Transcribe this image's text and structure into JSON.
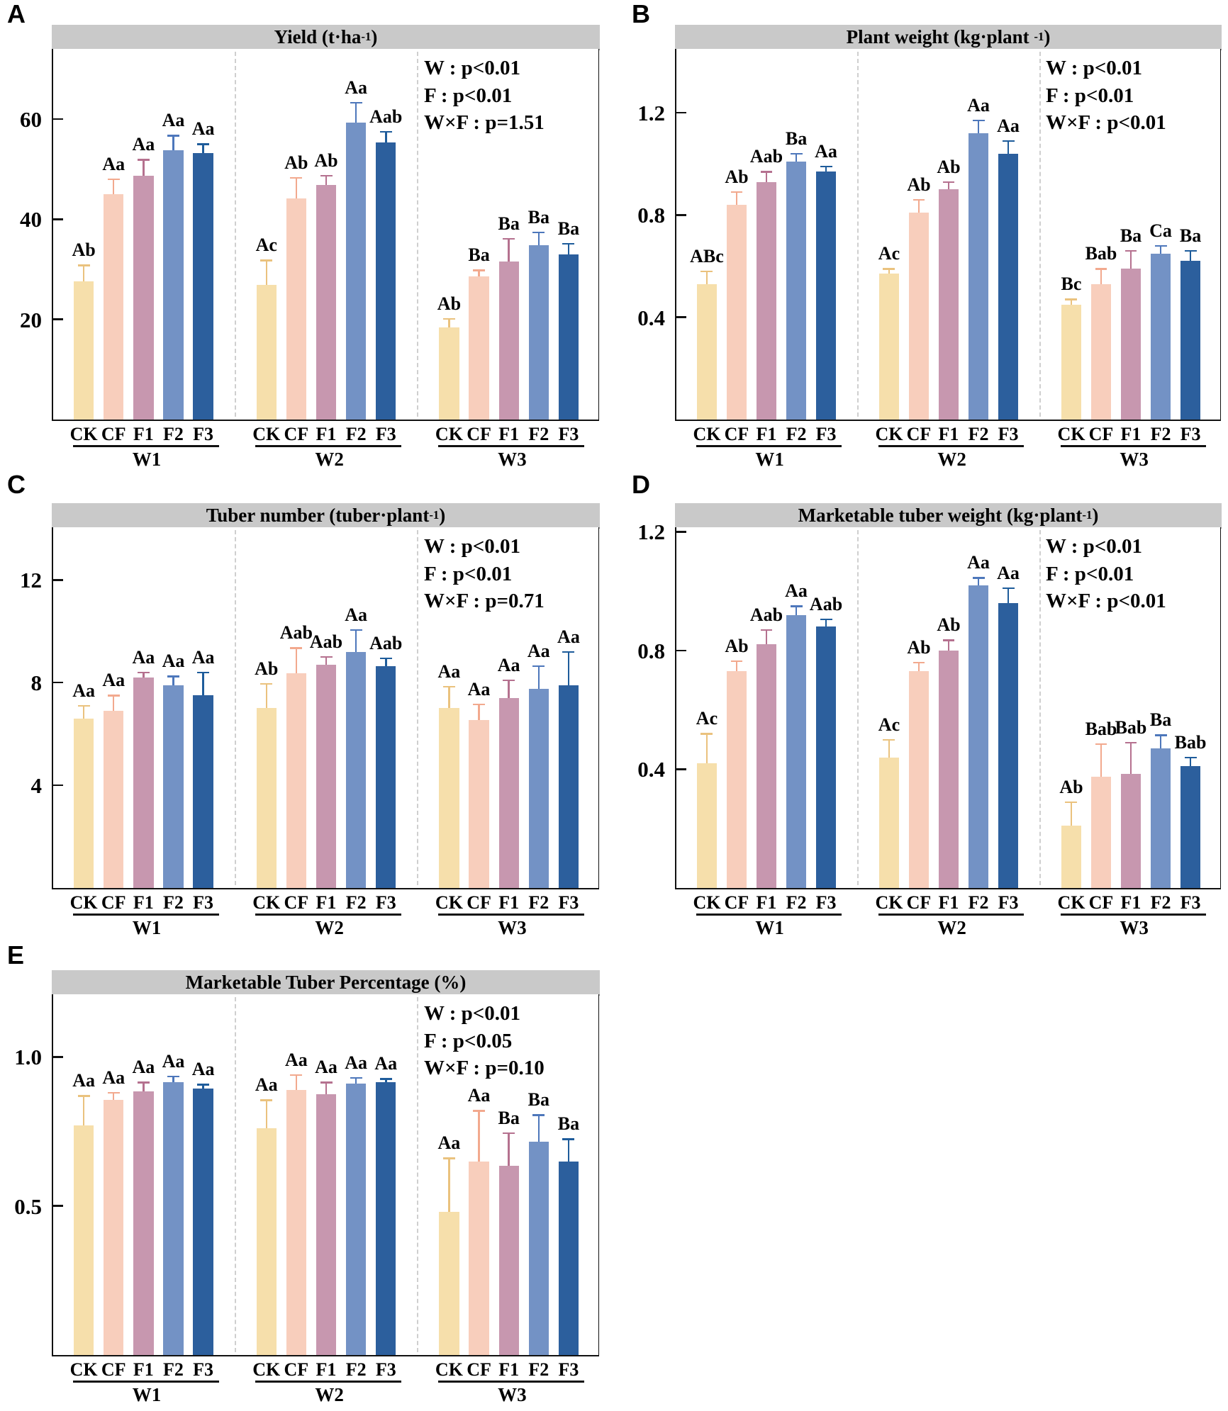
{
  "figure": {
    "panel_letters": [
      "A",
      "B",
      "C",
      "D",
      "E"
    ],
    "categories": [
      "CK",
      "CF",
      "F1",
      "F2",
      "F3"
    ],
    "water_groups": [
      "W1",
      "W2",
      "W3"
    ],
    "colors": {
      "bar_fills": {
        "CK": "#F6DFAB",
        "CF": "#F8CEBC",
        "F1": "#C797AF",
        "F2": "#7392C5",
        "F3": "#2C5F9D"
      },
      "error_bars": {
        "CK": "#EAC27E",
        "CF": "#F2A98E",
        "F1": "#B5718F",
        "F2": "#4D77BB",
        "F3": "#1E5C9B"
      },
      "title_bar_bg": "#C9C9C9",
      "separator": "#CFCFCF",
      "axis": "#111111"
    }
  },
  "chart_data": [
    {
      "panel": "A",
      "type": "bar",
      "title_pre": "Yield (t·ha",
      "title_sup": "-1",
      "title_post": ")",
      "stats": [
        "W : p<0.01",
        "F : p<0.01",
        "W×F : p=1.51"
      ],
      "ytick_labels": [
        "20",
        "40",
        "60"
      ],
      "ytick_values": [
        20,
        40,
        60
      ],
      "ylim": [
        0,
        74
      ],
      "categories": [
        "CK",
        "CF",
        "F1",
        "F2",
        "F3"
      ],
      "group_labels": [
        "W1",
        "W2",
        "W3"
      ],
      "series": [
        {
          "group": "W1",
          "values": [
            27.6,
            45.0,
            48.7,
            53.8,
            53.2
          ],
          "errors": [
            3.2,
            3.0,
            3.2,
            2.9,
            1.8
          ],
          "sig_letters": [
            "Ab",
            "Aa",
            "Aa",
            "Aa",
            "Aa"
          ]
        },
        {
          "group": "W2",
          "values": [
            26.9,
            44.1,
            46.9,
            59.3,
            55.3
          ],
          "errors": [
            4.9,
            4.2,
            1.8,
            4.0,
            2.2
          ],
          "sig_letters": [
            "Ac",
            "Ab",
            "Ab",
            "Aa",
            "Aab"
          ]
        },
        {
          "group": "W3",
          "values": [
            18.4,
            28.6,
            31.6,
            34.8,
            32.9
          ],
          "errors": [
            1.7,
            1.2,
            4.5,
            2.6,
            2.2
          ],
          "sig_letters": [
            "Ab",
            "Ba",
            "Ba",
            "Ba",
            "Ba"
          ]
        }
      ]
    },
    {
      "panel": "B",
      "type": "bar",
      "title_pre": "Plant weight (kg·plant ",
      "title_sup": "-1",
      "title_post": ")",
      "stats": [
        "W : p<0.01",
        "F : p<0.01",
        "W×F : p<0.01"
      ],
      "ytick_labels": [
        "0.4",
        "0.8",
        "1.2"
      ],
      "ytick_values": [
        0.4,
        0.8,
        1.2
      ],
      "ylim": [
        0,
        1.45
      ],
      "categories": [
        "CK",
        "CF",
        "F1",
        "F2",
        "F3"
      ],
      "group_labels": [
        "W1",
        "W2",
        "W3"
      ],
      "series": [
        {
          "group": "W1",
          "values": [
            0.53,
            0.84,
            0.93,
            1.01,
            0.97
          ],
          "errors": [
            0.05,
            0.05,
            0.04,
            0.03,
            0.02
          ],
          "sig_letters": [
            "ABc",
            "Ab",
            "Aab",
            "Ba",
            "Aa"
          ]
        },
        {
          "group": "W2",
          "values": [
            0.57,
            0.81,
            0.9,
            1.12,
            1.04
          ],
          "errors": [
            0.02,
            0.05,
            0.03,
            0.05,
            0.05
          ],
          "sig_letters": [
            "Ac",
            "Ab",
            "Ab",
            "Aa",
            "Aa"
          ]
        },
        {
          "group": "W3",
          "values": [
            0.45,
            0.53,
            0.59,
            0.65,
            0.62
          ],
          "errors": [
            0.02,
            0.06,
            0.07,
            0.03,
            0.04
          ],
          "sig_letters": [
            "Bc",
            "Bab",
            "Ba",
            "Ca",
            "Ba"
          ]
        }
      ]
    },
    {
      "panel": "C",
      "type": "bar",
      "title_pre": "Tuber number (tuber·plant",
      "title_sup": "-1",
      "title_post": ")",
      "stats": [
        "W : p<0.01",
        "F : p<0.01",
        "W×F : p=0.71"
      ],
      "ytick_labels": [
        "4",
        "8",
        "12"
      ],
      "ytick_values": [
        4,
        8,
        12
      ],
      "ylim": [
        0,
        14.05
      ],
      "categories": [
        "CK",
        "CF",
        "F1",
        "F2",
        "F3"
      ],
      "group_labels": [
        "W1",
        "W2",
        "W3"
      ],
      "series": [
        {
          "group": "W1",
          "values": [
            6.6,
            6.9,
            8.2,
            7.9,
            7.5
          ],
          "errors": [
            0.5,
            0.6,
            0.2,
            0.35,
            0.9
          ],
          "sig_letters": [
            "Aa",
            "Aa",
            "Aa",
            "Aa",
            "Aa"
          ]
        },
        {
          "group": "W2",
          "values": [
            7.0,
            8.35,
            8.7,
            9.2,
            8.65
          ],
          "errors": [
            0.95,
            1.0,
            0.3,
            0.85,
            0.3
          ],
          "sig_letters": [
            "Ab",
            "Aab",
            "Aab",
            "Aa",
            "Aab"
          ]
        },
        {
          "group": "W3",
          "values": [
            7.0,
            6.55,
            7.4,
            7.75,
            7.9
          ],
          "errors": [
            0.85,
            0.6,
            0.7,
            0.9,
            1.3
          ],
          "sig_letters": [
            "Aa",
            "Aa",
            "Aa",
            "Aa",
            "Aa"
          ]
        }
      ]
    },
    {
      "panel": "D",
      "type": "bar",
      "title_pre": "Marketable tuber weight (kg·plant",
      "title_sup": "-1",
      "title_post": ")",
      "stats": [
        "W : p<0.01",
        "F : p<0.01",
        "W×F : p<0.01"
      ],
      "ytick_labels": [
        "0.4",
        "0.8",
        "1.2"
      ],
      "ytick_values": [
        0.4,
        0.8,
        1.2
      ],
      "ylim": [
        0,
        1.215
      ],
      "categories": [
        "CK",
        "CF",
        "F1",
        "F2",
        "F3"
      ],
      "group_labels": [
        "W1",
        "W2",
        "W3"
      ],
      "series": [
        {
          "group": "W1",
          "values": [
            0.42,
            0.73,
            0.82,
            0.92,
            0.88
          ],
          "errors": [
            0.1,
            0.035,
            0.05,
            0.03,
            0.025
          ],
          "sig_letters": [
            "Ac",
            "Ab",
            "Aab",
            "Aa",
            "Aab"
          ]
        },
        {
          "group": "W2",
          "values": [
            0.44,
            0.73,
            0.8,
            1.02,
            0.96
          ],
          "errors": [
            0.06,
            0.03,
            0.035,
            0.025,
            0.05
          ],
          "sig_letters": [
            "Ac",
            "Ab",
            "Ab",
            "Aa",
            "Aa"
          ]
        },
        {
          "group": "W3",
          "values": [
            0.21,
            0.375,
            0.385,
            0.47,
            0.41
          ],
          "errors": [
            0.08,
            0.11,
            0.105,
            0.045,
            0.03
          ],
          "sig_letters": [
            "Ab",
            "Bab",
            "Bab",
            "Ba",
            "Bab"
          ]
        }
      ]
    },
    {
      "panel": "E",
      "type": "bar",
      "title_pre": "Marketable Tuber Percentage (%)",
      "title_sup": "",
      "title_post": "",
      "stats": [
        "W : p<0.01",
        "F : p<0.05",
        "W×F : p=0.10"
      ],
      "ytick_labels": [
        "0.5",
        "1.0"
      ],
      "ytick_values": [
        0.5,
        1.0
      ],
      "ylim": [
        0,
        1.21
      ],
      "categories": [
        "CK",
        "CF",
        "F1",
        "F2",
        "F3"
      ],
      "group_labels": [
        "W1",
        "W2",
        "W3"
      ],
      "series": [
        {
          "group": "W1",
          "values": [
            0.77,
            0.855,
            0.885,
            0.915,
            0.895
          ],
          "errors": [
            0.1,
            0.025,
            0.03,
            0.02,
            0.012
          ],
          "sig_letters": [
            "Aa",
            "Aa",
            "Aa",
            "Aa",
            "Aa"
          ]
        },
        {
          "group": "W2",
          "values": [
            0.76,
            0.89,
            0.875,
            0.91,
            0.915
          ],
          "errors": [
            0.095,
            0.05,
            0.04,
            0.02,
            0.012
          ],
          "sig_letters": [
            "Aa",
            "Aa",
            "Aa",
            "Aa",
            "Aa"
          ]
        },
        {
          "group": "W3",
          "values": [
            0.48,
            0.65,
            0.635,
            0.715,
            0.65
          ],
          "errors": [
            0.18,
            0.17,
            0.11,
            0.09,
            0.075
          ],
          "sig_letters": [
            "Aa",
            "Aa",
            "Ba",
            "Ba",
            "Ba"
          ]
        }
      ]
    }
  ]
}
